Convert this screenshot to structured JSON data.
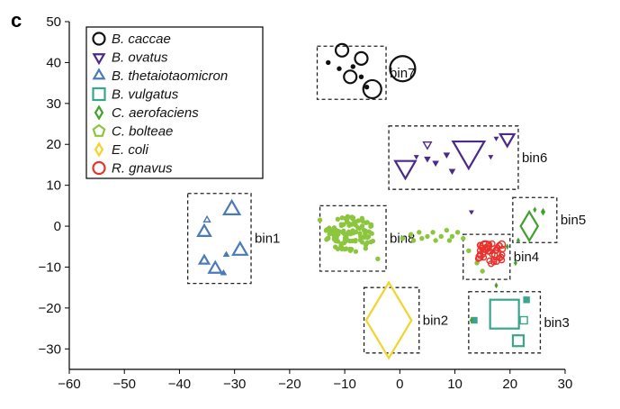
{
  "panel_label": "c",
  "chart_data": {
    "type": "scatter",
    "title": "",
    "xlabel": "",
    "ylabel": "",
    "xlim": [
      -60,
      30
    ],
    "ylim": [
      -35,
      50
    ],
    "xticks": [
      -60,
      -50,
      -40,
      -30,
      -20,
      -10,
      0,
      10,
      20,
      30
    ],
    "yticks": [
      -30,
      -20,
      -10,
      0,
      10,
      20,
      30,
      40,
      50
    ],
    "legend_position": "top-left",
    "colors": {
      "B. caccae": "#111111",
      "B. ovatus": "#4b2a8a",
      "B. thetaiotaomicron": "#4a7ab8",
      "B. vulgatus": "#3aa58c",
      "C. aerofaciens": "#43a02e",
      "C. bolteae": "#8cc63e",
      "E. coli": "#f2d42a",
      "R. gnavus": "#e8322d"
    },
    "series": [
      {
        "name": "B. caccae",
        "marker": "circle",
        "points": [
          {
            "x": 0.5,
            "y": 38.5,
            "s": 14
          },
          {
            "x": -7,
            "y": 41,
            "s": 7
          },
          {
            "x": -10.5,
            "y": 43,
            "s": 7
          },
          {
            "x": -9,
            "y": 36.5,
            "s": 7
          },
          {
            "x": -5,
            "y": 33.5,
            "s": 10
          },
          {
            "x": -7,
            "y": 36.5,
            "s": 2
          },
          {
            "x": -6,
            "y": 34,
            "s": 2
          },
          {
            "x": -11,
            "y": 38.5,
            "s": 2
          },
          {
            "x": -13,
            "y": 40,
            "s": 2
          },
          {
            "x": -8.5,
            "y": 39,
            "s": 2
          }
        ]
      },
      {
        "name": "B. ovatus",
        "marker": "triangle-down",
        "points": [
          {
            "x": 12.5,
            "y": 18.5,
            "s": 20
          },
          {
            "x": 1,
            "y": 14.5,
            "s": 13
          },
          {
            "x": 19.5,
            "y": 21.5,
            "s": 9
          },
          {
            "x": 5,
            "y": 20,
            "s": 5
          },
          {
            "x": 8.5,
            "y": 17.5,
            "s": 3
          },
          {
            "x": 9.5,
            "y": 13.5,
            "s": 3
          },
          {
            "x": 6.5,
            "y": 15.5,
            "s": 3
          },
          {
            "x": 5,
            "y": 16.5,
            "s": 3
          },
          {
            "x": 17.5,
            "y": 21.5,
            "s": 2
          },
          {
            "x": 3,
            "y": 17,
            "s": 2
          },
          {
            "x": 16.5,
            "y": 17,
            "s": 2
          },
          {
            "x": 13,
            "y": 3.5,
            "s": 2
          }
        ]
      },
      {
        "name": "B. thetaiotaomicron",
        "marker": "triangle-up",
        "points": [
          {
            "x": -30.5,
            "y": 4,
            "s": 10
          },
          {
            "x": -29,
            "y": -6,
            "s": 9
          },
          {
            "x": -33.5,
            "y": -10.5,
            "s": 8
          },
          {
            "x": -35.5,
            "y": -1.5,
            "s": 8
          },
          {
            "x": -35.5,
            "y": -8.5,
            "s": 6
          },
          {
            "x": -35,
            "y": 1.5,
            "s": 4
          },
          {
            "x": -31.5,
            "y": -7,
            "s": 3
          },
          {
            "x": -32,
            "y": -11.5,
            "s": 3
          }
        ]
      },
      {
        "name": "B. vulgatus",
        "marker": "square",
        "points": [
          {
            "x": 19,
            "y": -21.5,
            "s": 16
          },
          {
            "x": 21.5,
            "y": -28,
            "s": 6
          },
          {
            "x": 22.5,
            "y": -23,
            "s": 4
          },
          {
            "x": 23,
            "y": -18,
            "s": 3
          },
          {
            "x": 13.5,
            "y": -23,
            "s": 3
          }
        ]
      },
      {
        "name": "C. aerofaciens",
        "marker": "diamond",
        "points": [
          {
            "x": 23.5,
            "y": 0,
            "s": 16
          },
          {
            "x": 26,
            "y": 3.5,
            "s": 3
          },
          {
            "x": 24.5,
            "y": 4,
            "s": 2
          },
          {
            "x": 21.5,
            "y": -3.5,
            "s": 2
          },
          {
            "x": 19.5,
            "y": -5,
            "s": 2
          },
          {
            "x": 17.5,
            "y": -14.5,
            "s": 2
          },
          {
            "x": 21,
            "y": -9,
            "s": 2
          },
          {
            "x": 13,
            "y": -23,
            "s": 2
          }
        ]
      },
      {
        "name": "C. bolteae",
        "marker": "pentagon",
        "cluster": {
          "cx": -9,
          "cy": -2,
          "rx": 4.5,
          "ry": 4.5,
          "count": 110,
          "s": 2
        },
        "points": [
          {
            "x": -14.5,
            "y": 1.5,
            "s": 2
          },
          {
            "x": -4,
            "y": -8,
            "s": 2
          },
          {
            "x": 0.5,
            "y": -3,
            "s": 2
          },
          {
            "x": 2,
            "y": -2,
            "s": 2
          },
          {
            "x": 3.5,
            "y": -1.5,
            "s": 2
          },
          {
            "x": 5,
            "y": -2.5,
            "s": 2
          },
          {
            "x": 6,
            "y": -1.5,
            "s": 2
          },
          {
            "x": 7.5,
            "y": -2.5,
            "s": 2
          },
          {
            "x": 8.5,
            "y": -1,
            "s": 2
          },
          {
            "x": 9.5,
            "y": -2.5,
            "s": 2
          },
          {
            "x": 10.5,
            "y": -1.5,
            "s": 2
          },
          {
            "x": 11.5,
            "y": -3,
            "s": 2
          },
          {
            "x": 4,
            "y": -3,
            "s": 2
          },
          {
            "x": 6.5,
            "y": -3.5,
            "s": 2
          },
          {
            "x": 9,
            "y": -3.5,
            "s": 2
          },
          {
            "x": 2.5,
            "y": -3.5,
            "s": 2
          },
          {
            "x": 12.5,
            "y": -6,
            "s": 2
          },
          {
            "x": 14,
            "y": -9,
            "s": 2
          },
          {
            "x": 15,
            "y": -11,
            "s": 2
          }
        ]
      },
      {
        "name": "E. coli",
        "marker": "diamond",
        "points": [
          {
            "x": -2,
            "y": -23,
            "s": 42
          }
        ]
      },
      {
        "name": "R. gnavus",
        "marker": "circle",
        "cluster": {
          "cx": 16.5,
          "cy": -6.5,
          "rx": 2.7,
          "ry": 2.8,
          "count": 38,
          "s": 3
        },
        "points": [
          {
            "x": 15.5,
            "y": -5,
            "s": 6
          },
          {
            "x": 17.5,
            "y": -7,
            "s": 5
          },
          {
            "x": 14.5,
            "y": -7.5,
            "s": 4
          },
          {
            "x": 18.5,
            "y": -4.5,
            "s": 4
          }
        ]
      }
    ],
    "annotations": [
      {
        "text": "bin1",
        "box": {
          "x0": -38.5,
          "x1": -27,
          "y0": -14,
          "y1": 8
        }
      },
      {
        "text": "bin2",
        "box": {
          "x0": -6.5,
          "x1": 3.5,
          "y0": -31,
          "y1": -15
        }
      },
      {
        "text": "bin3",
        "box": {
          "x0": 12.5,
          "x1": 25.5,
          "y0": -31,
          "y1": -16
        }
      },
      {
        "text": "bin4",
        "box": {
          "x0": 11.5,
          "x1": 20,
          "y0": -13,
          "y1": -2
        }
      },
      {
        "text": "bin5",
        "box": {
          "x0": 20.5,
          "x1": 28.5,
          "y0": -4,
          "y1": 7
        }
      },
      {
        "text": "bin6",
        "box": {
          "x0": -2,
          "x1": 21.5,
          "y0": 9,
          "y1": 24.5
        }
      },
      {
        "text": "bin7",
        "box": {
          "x0": -15,
          "x1": -2.5,
          "y0": 31,
          "y1": 44
        }
      },
      {
        "text": "bin8",
        "box": {
          "x0": -14.5,
          "x1": -2.5,
          "y0": -11,
          "y1": 5
        }
      }
    ]
  }
}
